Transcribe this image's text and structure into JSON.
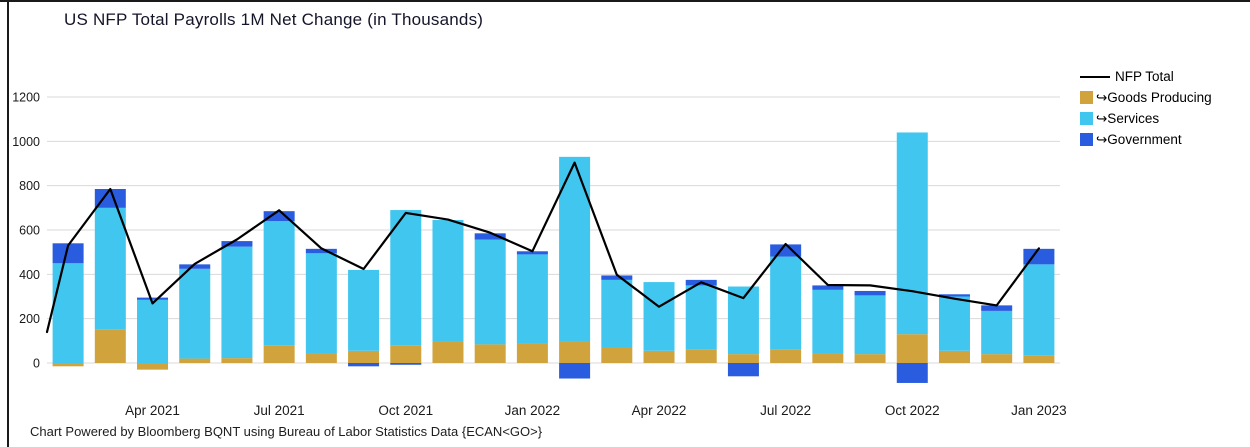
{
  "page": {
    "title": "US NFP Total Payrolls 1M Net Change (in Thousands)",
    "footer": "Chart Powered by Bloomberg BQNT using Bureau of Labor Statistics Data   {ECAN<GO>}"
  },
  "legend": {
    "items": [
      {
        "label": "NFP Total",
        "type": "line",
        "color": "#000000"
      },
      {
        "label": "↪Goods Producing",
        "type": "box",
        "color": "#D1A33C"
      },
      {
        "label": "↪Services",
        "type": "box",
        "color": "#41C6F0"
      },
      {
        "label": "↪Government",
        "type": "box",
        "color": "#2A5CDF"
      }
    ]
  },
  "chart_data": {
    "type": "bar",
    "subtype": "stacked-bars-with-line-overlay",
    "title": "US NFP Total Payrolls 1M Net Change (in Thousands)",
    "categories": [
      "Feb 2021",
      "Mar 2021",
      "Apr 2021",
      "May 2021",
      "Jun 2021",
      "Jul 2021",
      "Aug 2021",
      "Sep 2021",
      "Oct 2021",
      "Nov 2021",
      "Dec 2021",
      "Jan 2022",
      "Feb 2022",
      "Mar 2022",
      "Apr 2022",
      "May 2022",
      "Jun 2022",
      "Jul 2022",
      "Aug 2022",
      "Sep 2022",
      "Oct 2022",
      "Nov 2022",
      "Dec 2022",
      "Jan 2023"
    ],
    "x_tick_labels": [
      "Apr 2021",
      "Jul 2021",
      "Oct 2021",
      "Jan 2022",
      "Apr 2022",
      "Jul 2022",
      "Oct 2022",
      "Jan 2023"
    ],
    "x_tick_indices": [
      2,
      5,
      8,
      11,
      14,
      17,
      20,
      23
    ],
    "y_ticks": [
      0,
      200,
      400,
      600,
      800,
      1000,
      1200
    ],
    "ylim": [
      -120,
      1280
    ],
    "grid": "horizontal",
    "legend_position": "right-top",
    "series": [
      {
        "name": "Goods Producing",
        "color": "#D1A33C",
        "values": [
          -15,
          150,
          -30,
          20,
          22,
          80,
          45,
          55,
          80,
          95,
          84,
          90,
          95,
          70,
          55,
          60,
          40,
          60,
          45,
          40,
          130,
          55,
          40,
          35
        ]
      },
      {
        "name": "Services",
        "color": "#41C6F0",
        "values": [
          450,
          550,
          285,
          405,
          503,
          560,
          450,
          365,
          610,
          550,
          473,
          400,
          835,
          305,
          310,
          290,
          305,
          420,
          285,
          265,
          910,
          245,
          195,
          410
        ]
      },
      {
        "name": "Government",
        "color": "#2A5CDF",
        "values": [
          90,
          85,
          10,
          20,
          25,
          45,
          20,
          -15,
          -8,
          0,
          28,
          14,
          -70,
          20,
          0,
          25,
          -60,
          55,
          20,
          20,
          -90,
          10,
          25,
          70
        ]
      }
    ],
    "line": {
      "name": "NFP Total",
      "color": "#000000",
      "lead_value": 140,
      "values": [
        530,
        785,
        269,
        447,
        557,
        689,
        517,
        424,
        677,
        647,
        588,
        504,
        904,
        398,
        254,
        364,
        293,
        537,
        352,
        350,
        324,
        290,
        260,
        517
      ]
    }
  }
}
